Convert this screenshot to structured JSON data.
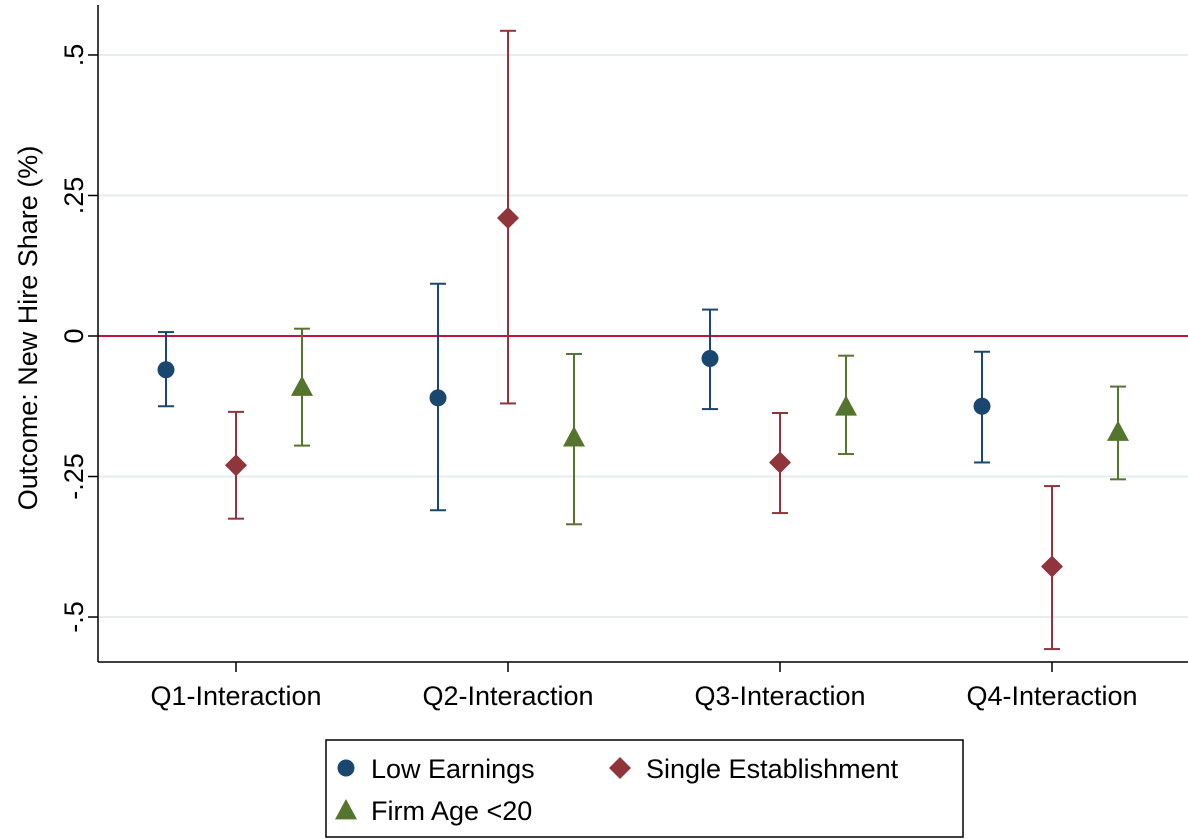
{
  "chart_data": {
    "type": "scatter",
    "subtype": "point-with-confidence-intervals",
    "title": "",
    "xlabel": "",
    "ylabel": "Outcome: New Hire Share (%)",
    "ylim": [
      -0.58,
      0.58
    ],
    "yticks": [
      {
        "value": 0.5,
        "label": ".5"
      },
      {
        "value": 0.25,
        "label": ".25"
      },
      {
        "value": 0,
        "label": "0"
      },
      {
        "value": -0.25,
        "label": "-.25"
      },
      {
        "value": -0.5,
        "label": "-.5"
      }
    ],
    "categories": [
      "Q1-Interaction",
      "Q2-Interaction",
      "Q3-Interaction",
      "Q4-Interaction"
    ],
    "grid": true,
    "reference_line": {
      "y": 0,
      "color": "#c0143c"
    },
    "legend": {
      "placement": "bottom"
    },
    "series": [
      {
        "name": "Low Earnings",
        "marker": "circle",
        "color": "#1a476f",
        "values": [
          -0.06,
          -0.11,
          -0.04,
          -0.125
        ],
        "ci_low": [
          -0.125,
          -0.31,
          -0.13,
          -0.225
        ],
        "ci_high": [
          0.007,
          0.093,
          0.047,
          -0.028
        ]
      },
      {
        "name": "Single Establishment",
        "marker": "diamond",
        "color": "#90353b",
        "values": [
          -0.23,
          0.21,
          -0.225,
          -0.41
        ],
        "ci_low": [
          -0.325,
          -0.12,
          -0.315,
          -0.557
        ],
        "ci_high": [
          -0.135,
          0.543,
          -0.137,
          -0.267
        ]
      },
      {
        "name": "Firm Age <20",
        "marker": "triangle",
        "color": "#55752f",
        "values": [
          -0.09,
          -0.18,
          -0.125,
          -0.17
        ],
        "ci_low": [
          -0.195,
          -0.335,
          -0.21,
          -0.255
        ],
        "ci_high": [
          0.013,
          -0.032,
          -0.035,
          -0.09
        ]
      }
    ]
  }
}
